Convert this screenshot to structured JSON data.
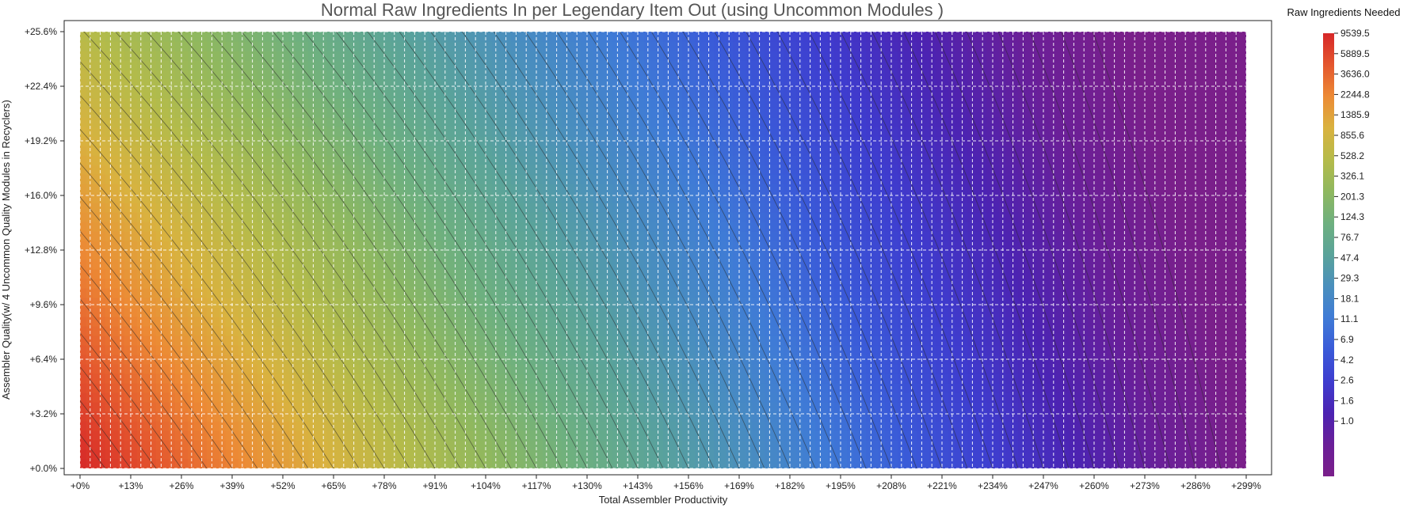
{
  "chart_data": {
    "type": "heatmap",
    "title": "Normal Raw Ingredients In per Legendary Item Out (using Uncommon Modules )",
    "xlabel": "Total Assembler Productivity",
    "ylabel_line1": "Assembler Quality",
    "ylabel_line2": "(w/ 4 Uncommon Quality Modules in Recyclers)",
    "x_ticks": [
      "+0%",
      "+13%",
      "+26%",
      "+39%",
      "+52%",
      "+65%",
      "+78%",
      "+91%",
      "+104%",
      "+117%",
      "+130%",
      "+143%",
      "+156%",
      "+169%",
      "+182%",
      "+195%",
      "+208%",
      "+221%",
      "+234%",
      "+247%",
      "+260%",
      "+273%",
      "+286%",
      "+299%"
    ],
    "y_ticks": [
      "+0.0%",
      "+3.2%",
      "+6.4%",
      "+9.6%",
      "+12.8%",
      "+16.0%",
      "+19.2%",
      "+22.4%",
      "+25.6%"
    ],
    "xlim": [
      0,
      299
    ],
    "ylim": [
      0,
      25.6
    ],
    "grid": true,
    "colorbar": {
      "title": "Raw Ingredients Needed",
      "labels": [
        "9539.5",
        "5889.5",
        "3636.0",
        "2244.8",
        "1385.9",
        "855.6",
        "528.2",
        "326.1",
        "201.3",
        "124.3",
        "76.7",
        "47.4",
        "29.3",
        "18.1",
        "11.1",
        "6.9",
        "4.2",
        "2.6",
        "1.6",
        "1.0"
      ],
      "colors": [
        "#d62728",
        "#e4572e",
        "#ec8a35",
        "#d9b23f",
        "#b5bb4a",
        "#8fb85f",
        "#6eb07f",
        "#5aa39a",
        "#4a8fbd",
        "#3f7bd6",
        "#3a5ad8",
        "#3e3dcf",
        "#4c23b2",
        "#6a1f98",
        "#7a1f8a"
      ]
    },
    "contour_levels": 46
  }
}
